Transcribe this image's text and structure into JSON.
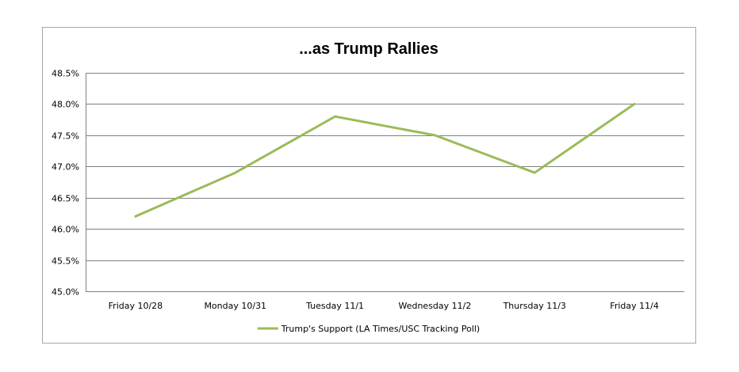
{
  "chart_data": {
    "type": "line",
    "title": "...as Trump Rallies",
    "categories": [
      "Friday 10/28",
      "Monday 10/31",
      "Tuesday 11/1",
      "Wednesday 11/2",
      "Thursday 11/3",
      "Friday 11/4"
    ],
    "series": [
      {
        "name": "Trump's Support (LA Times/USC Tracking Poll)",
        "values": [
          46.2,
          46.9,
          47.8,
          47.5,
          46.9,
          48.0
        ],
        "color": "#9bbb59"
      }
    ],
    "ylim": [
      45.0,
      48.5
    ],
    "yticks": [
      45.0,
      45.5,
      46.0,
      46.5,
      47.0,
      47.5,
      48.0,
      48.5
    ],
    "ytick_labels": [
      "45.0%",
      "45.5%",
      "46.0%",
      "46.5%",
      "47.0%",
      "47.5%",
      "48.0%",
      "48.5%"
    ],
    "grid": true,
    "legend_position": "bottom",
    "gridline_color": "#808080"
  }
}
